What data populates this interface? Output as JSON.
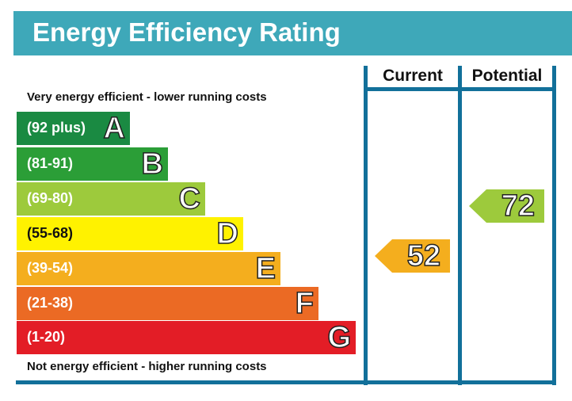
{
  "chart_data": {
    "type": "bar",
    "title": "Energy Efficiency Rating",
    "top_note": "Very energy efficient - lower running costs",
    "bottom_note": "Not energy efficient - higher running costs",
    "columns": [
      "Current",
      "Potential"
    ],
    "bands": [
      {
        "letter": "A",
        "range": "(92 plus)",
        "color": "#1a8a42"
      },
      {
        "letter": "B",
        "range": "(81-91)",
        "color": "#2b9e37"
      },
      {
        "letter": "C",
        "range": "(69-80)",
        "color": "#9dca3c"
      },
      {
        "letter": "D",
        "range": "(55-68)",
        "color": "#fff200"
      },
      {
        "letter": "E",
        "range": "(39-54)",
        "color": "#f4ae1e"
      },
      {
        "letter": "F",
        "range": "(21-38)",
        "color": "#eb6a24"
      },
      {
        "letter": "G",
        "range": "(1-20)",
        "color": "#e31d26"
      }
    ],
    "current": {
      "value": "52",
      "band": "E",
      "color": "#f4ae1e"
    },
    "potential": {
      "value": "72",
      "band": "C",
      "color": "#9dca3c"
    }
  }
}
